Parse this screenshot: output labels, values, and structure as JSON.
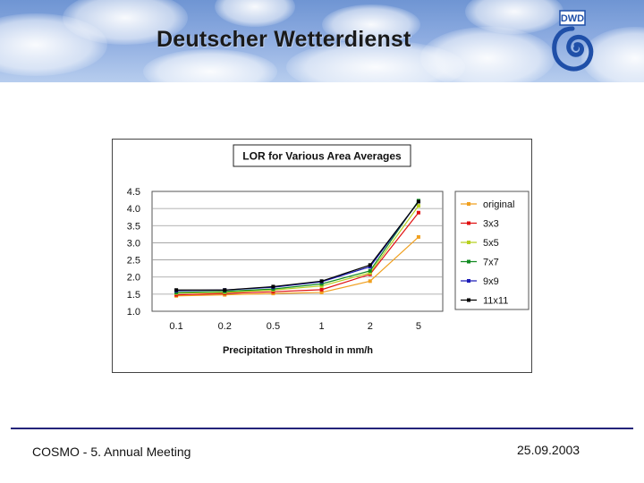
{
  "header": {
    "title": "Deutscher Wetterdienst",
    "logo_text": "DWD",
    "logo_color": "#1f4fa8"
  },
  "footer": {
    "left_text": "COSMO - 5. Annual Meeting",
    "right_text": "25.09.2003",
    "line_color": "#23237a"
  },
  "chart_data": {
    "type": "line",
    "title": "LOR for Various Area Averages",
    "xlabel": "Precipitation Threshold in mm/h",
    "ylabel": "",
    "categories": [
      "0.1",
      "0.2",
      "0.5",
      "1",
      "2",
      "5"
    ],
    "ylim": [
      1.0,
      4.5
    ],
    "yticks": [
      "1.0",
      "1.5",
      "2.0",
      "2.5",
      "3.0",
      "3.5",
      "4.0",
      "4.5"
    ],
    "grid": true,
    "legend_position": "right",
    "series": [
      {
        "name": "original",
        "color": "#f0a020",
        "values": [
          1.45,
          1.48,
          1.52,
          1.55,
          1.88,
          3.17
        ]
      },
      {
        "name": "3x3",
        "color": "#e01010",
        "values": [
          1.48,
          1.52,
          1.57,
          1.63,
          2.08,
          3.88
        ]
      },
      {
        "name": "5x5",
        "color": "#b8d020",
        "values": [
          1.53,
          1.55,
          1.62,
          1.74,
          2.12,
          4.08
        ]
      },
      {
        "name": "7x7",
        "color": "#108a20",
        "values": [
          1.55,
          1.58,
          1.65,
          1.8,
          2.18,
          4.23
        ]
      },
      {
        "name": "9x9",
        "color": "#1c1cb8",
        "values": [
          1.6,
          1.62,
          1.7,
          1.86,
          2.3,
          4.2
        ]
      },
      {
        "name": "11x11",
        "color": "#000000",
        "values": [
          1.62,
          1.62,
          1.72,
          1.88,
          2.35,
          4.2
        ]
      }
    ]
  }
}
